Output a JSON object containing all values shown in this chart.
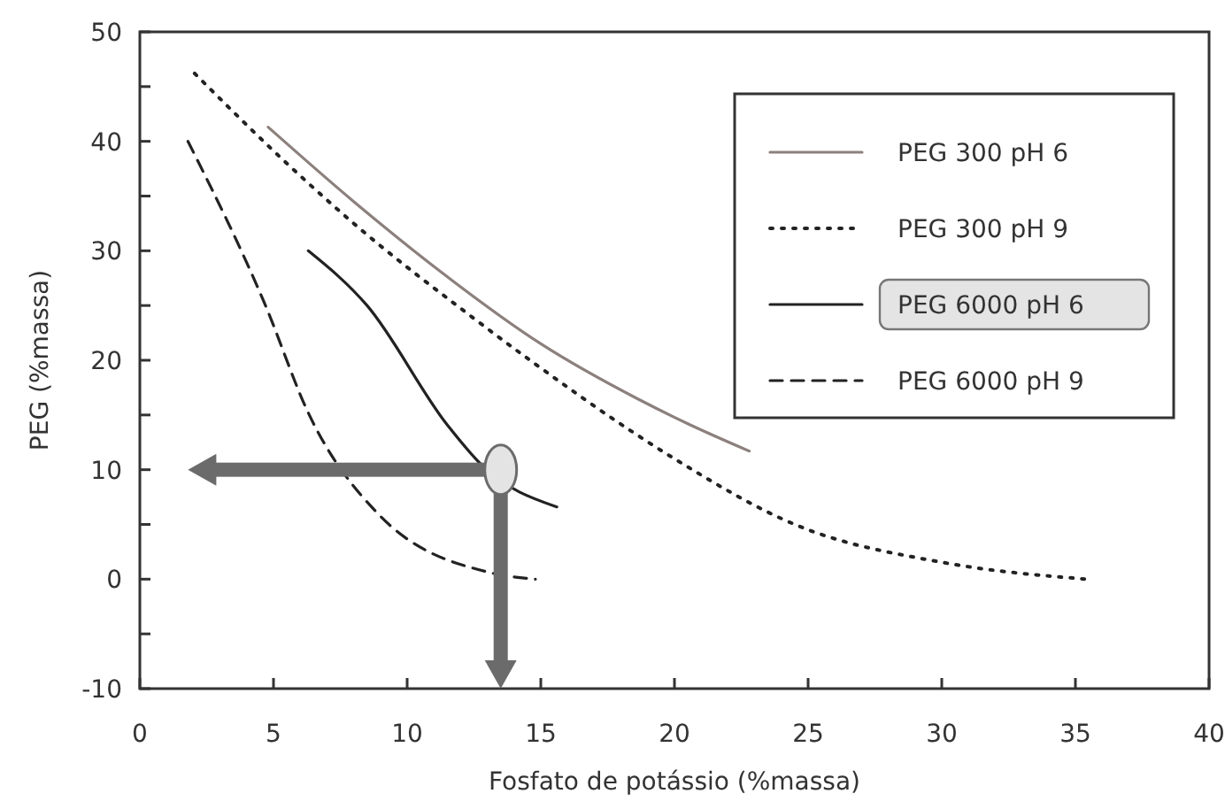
{
  "chart_data": {
    "type": "line",
    "xlabel": "Fosfato de potássio (%massa)",
    "ylabel": "PEG (%massa)",
    "xlim": [
      0,
      40
    ],
    "ylim": [
      -10,
      50
    ],
    "xticks": [
      0,
      5,
      10,
      15,
      20,
      25,
      30,
      35,
      40
    ],
    "yticks": [
      -10,
      {
        "value": -5,
        "label": null
      },
      0,
      {
        "value": 5,
        "label": null
      },
      10,
      {
        "value": 15,
        "label": null
      },
      20,
      {
        "value": 25,
        "label": null
      },
      30,
      {
        "value": 35,
        "label": null
      },
      40,
      {
        "value": 45,
        "label": null
      },
      50
    ],
    "grid": false,
    "legend": "top right",
    "marker": "none",
    "series": [
      {
        "name": "PEG 300 pH 6",
        "color": "#8c807d",
        "line_style": "solid",
        "x": [
          4.8,
          8,
          11.3,
          15,
          18.6,
          20.5,
          22.8
        ],
        "values": [
          41.3,
          34.5,
          28,
          21.5,
          16.5,
          14.2,
          11.7
        ]
      },
      {
        "name": "PEG 300 pH 9",
        "color": "#222222",
        "line_style": "dotted",
        "x": [
          2.05,
          5.8,
          8,
          12.4,
          14.6,
          18.4,
          20,
          24.6,
          30.1,
          35.4
        ],
        "values": [
          46.2,
          37.3,
          32.5,
          24,
          20,
          13.5,
          11,
          4.9,
          1.5,
          0
        ]
      },
      {
        "name": "PEG 6000 pH 6",
        "color": "#222222",
        "line_style": "solid",
        "x": [
          6.3,
          8.5,
          11.5,
          12.8,
          15.6
        ],
        "values": [
          30,
          25,
          14.1,
          10.4,
          6.6
        ]
      },
      {
        "name": "PEG 6000 pH 9",
        "color": "#222222",
        "line_style": "dashed",
        "x": [
          1.8,
          4.7,
          6.3,
          8.9,
          13.1,
          14.8
        ],
        "values": [
          40,
          25,
          15.2,
          6,
          0.6,
          0
        ]
      }
    ]
  }
}
